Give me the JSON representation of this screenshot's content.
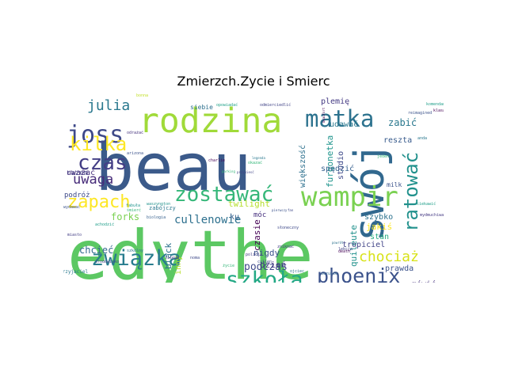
{
  "chart_data": {
    "type": "wordcloud",
    "title": "Zmierzch.Zycie i Smierc",
    "background": "#ffffff",
    "colormap": "viridis",
    "axes": "off",
    "words": [
      {
        "text": "beau",
        "weight": 100,
        "color": "#3b5a8a"
      },
      {
        "text": "edythe",
        "weight": 95,
        "color": "#5cc863"
      },
      {
        "text": "swój",
        "weight": 80,
        "color": "#31688e"
      },
      {
        "text": "rodzina",
        "weight": 55,
        "color": "#a0da39"
      },
      {
        "text": "matka",
        "weight": 40,
        "color": "#2c728e"
      },
      {
        "text": "wampir",
        "weight": 40,
        "color": "#7ad151"
      },
      {
        "text": "zostawać",
        "weight": 36,
        "color": "#35b779"
      },
      {
        "text": "joss",
        "weight": 36,
        "color": "#3e4989"
      },
      {
        "text": "czas",
        "weight": 34,
        "color": "#433e85"
      },
      {
        "text": "związka",
        "weight": 32,
        "color": "#287c8e"
      },
      {
        "text": "szkoła",
        "weight": 32,
        "color": "#22a884"
      },
      {
        "text": "phoenix",
        "weight": 31,
        "color": "#3b528b"
      },
      {
        "text": "kilka",
        "weight": 30,
        "color": "#fde725"
      },
      {
        "text": "ratować",
        "weight": 30,
        "color": "#21918c"
      },
      {
        "text": "zapach",
        "weight": 26,
        "color": "#fde725"
      },
      {
        "text": "julia",
        "weight": 26,
        "color": "#2a788e"
      },
      {
        "text": "uwaga",
        "weight": 23,
        "color": "#472c7a"
      },
      {
        "text": "chociaż",
        "weight": 22,
        "color": "#d8e219"
      },
      {
        "text": "cullenowie",
        "weight": 17,
        "color": "#2d708e"
      },
      {
        "text": "furgonetka",
        "weight": 14,
        "color": "#1f948c"
      },
      {
        "text": "forks",
        "weight": 14,
        "color": "#7ad151"
      },
      {
        "text": "plemię",
        "weight": 13,
        "color": "#443a83"
      },
      {
        "text": "udawać",
        "weight": 13,
        "color": "#2a788e"
      },
      {
        "text": "twilight",
        "weight": 13,
        "color": "#b5de2b"
      },
      {
        "text": "podczas",
        "weight": 13,
        "color": "#3e4989"
      },
      {
        "text": "prawda",
        "weight": 12,
        "color": "#3b528b"
      },
      {
        "text": "mówić",
        "weight": 12,
        "color": "#46327e"
      },
      {
        "text": "quileute",
        "weight": 12,
        "color": "#21918c"
      },
      {
        "text": "szybko",
        "weight": 12,
        "color": "#2c728e"
      },
      {
        "text": "spędzić",
        "weight": 12,
        "color": "#355f8d"
      },
      {
        "text": "czasie",
        "weight": 10,
        "color": "#440154"
      },
      {
        "text": "chcieć",
        "weight": 12,
        "color": "#31688e"
      },
      {
        "text": "nigdy",
        "weight": 12,
        "color": "#3b528b"
      },
      {
        "text": "dzień",
        "weight": 12,
        "color": "#443983"
      },
      {
        "text": "stan",
        "weight": 12,
        "color": "#27ad81"
      },
      {
        "text": "reszta",
        "weight": 12,
        "color": "#375a8c"
      },
      {
        "text": "zabić",
        "weight": 12,
        "color": "#2a788e"
      },
      {
        "text": "jakiś",
        "weight": 11,
        "color": "#fde725"
      },
      {
        "text": "inny",
        "weight": 11,
        "color": "#b5de2b"
      },
      {
        "text": "black",
        "weight": 11,
        "color": "#2c728e"
      },
      {
        "text": "większość",
        "weight": 11,
        "color": "#2d708e"
      },
      {
        "text": "studio",
        "weight": 10,
        "color": "#3e4989"
      },
      {
        "text": "tropiciel",
        "weight": 10,
        "color": "#414487"
      },
      {
        "text": "uważać",
        "weight": 10,
        "color": "#472f7d"
      },
      {
        "text": "podróż",
        "weight": 10,
        "color": "#3e4a89"
      },
      {
        "text": "ku",
        "weight": 10,
        "color": "#355f8d"
      },
      {
        "text": "razem",
        "weight": 10,
        "color": "#433d84"
      },
      {
        "text": "móc",
        "weight": 9,
        "color": "#46307e"
      },
      {
        "text": "siebie",
        "weight": 8,
        "color": "#2d708e"
      },
      {
        "text": "milk",
        "weight": 8,
        "color": "#3b528b"
      },
      {
        "text": "zabójczy",
        "weight": 6,
        "color": "#2a788e"
      },
      {
        "text": "opowiadać",
        "weight": 6,
        "color": "#1fa187"
      },
      {
        "text": "odmierciedlić",
        "weight": 6,
        "color": "#414487"
      },
      {
        "text": "komendant",
        "weight": 6,
        "color": "#1f9e89"
      },
      {
        "text": "reimagined",
        "weight": 6,
        "color": "#3b528b"
      },
      {
        "text": "klasa",
        "weight": 6,
        "color": "#440154"
      },
      {
        "text": "bonna",
        "weight": 6,
        "color": "#c0df25"
      },
      {
        "text": "charlie",
        "weight": 6,
        "color": "#440154"
      },
      {
        "text": "śmierć",
        "weight": 6,
        "color": "#35b779"
      },
      {
        "text": "odrażać",
        "weight": 6,
        "color": "#46337e"
      },
      {
        "text": "arizona",
        "weight": 6,
        "color": "#3b528b"
      },
      {
        "text": "fabuła",
        "weight": 6,
        "color": "#1f948c"
      },
      {
        "text": "waszyngton",
        "weight": 6,
        "color": "#21918c"
      },
      {
        "text": "biologia",
        "weight": 6,
        "color": "#355f8d"
      },
      {
        "text": "miasto",
        "weight": 6,
        "color": "#433e85"
      },
      {
        "text": "szkolny",
        "weight": 6,
        "color": "#2c728e"
      },
      {
        "text": "przyjaciel",
        "weight": 6,
        "color": "#2a788e"
      },
      {
        "text": "środowisko",
        "weight": 6,
        "color": "#414487"
      },
      {
        "text": "achodzić",
        "weight": 6,
        "color": "#1f9e89"
      },
      {
        "text": "wydawać",
        "weight": 6,
        "color": "#3b528b"
      },
      {
        "text": "okazać",
        "weight": 6,
        "color": "#35b779"
      },
      {
        "text": "liceum",
        "weight": 6,
        "color": "#46327e"
      },
      {
        "text": "noma",
        "weight": 6,
        "color": "#3e4989"
      },
      {
        "text": "policja",
        "weight": 6,
        "color": "#433e85"
      },
      {
        "text": "cullen",
        "weight": 6,
        "color": "#3e4989"
      },
      {
        "text": "ojciec",
        "weight": 6,
        "color": "#2c728e"
      },
      {
        "text": "uczucie",
        "weight": 6,
        "color": "#31688e"
      },
      {
        "text": "lekcja",
        "weight": 6,
        "color": "#414487"
      },
      {
        "text": "death",
        "weight": 6,
        "color": "#440154"
      },
      {
        "text": "zniknać",
        "weight": 6,
        "color": "#433e85"
      },
      {
        "text": "legenda",
        "weight": 5,
        "color": "#2a788e"
      },
      {
        "text": "przyniesć",
        "weight": 5,
        "color": "#414487"
      },
      {
        "text": "parking",
        "weight": 5,
        "color": "#35b779"
      },
      {
        "text": "beaufort",
        "weight": 5,
        "color": "#440154"
      },
      {
        "text": "słoneczny",
        "weight": 5,
        "color": "#3e4989"
      },
      {
        "text": "fan",
        "weight": 5,
        "color": "#3e4989"
      },
      {
        "text": "pierwszy",
        "weight": 5,
        "color": "#3b528b"
      },
      {
        "text": "powrót",
        "weight": 5,
        "color": "#2c728e"
      },
      {
        "text": "jeden",
        "weight": 5,
        "color": "#35b779"
      },
      {
        "text": "anda",
        "weight": 5,
        "color": "#2a788e"
      },
      {
        "text": "ciekawić",
        "weight": 5,
        "color": "#1f9e89"
      },
      {
        "text": "mydmuchiwać",
        "weight": 5,
        "color": "#443983"
      },
      {
        "text": "pozwalać",
        "weight": 5,
        "color": "#414487"
      },
      {
        "text": "opuszczać",
        "weight": 5,
        "color": "#2c728e"
      },
      {
        "text": "mieć",
        "weight": 5,
        "color": "#2a788e"
      },
      {
        "text": "strona",
        "weight": 5,
        "color": "#7ad151"
      },
      {
        "text": "życie",
        "weight": 5,
        "color": "#35b779"
      }
    ]
  }
}
